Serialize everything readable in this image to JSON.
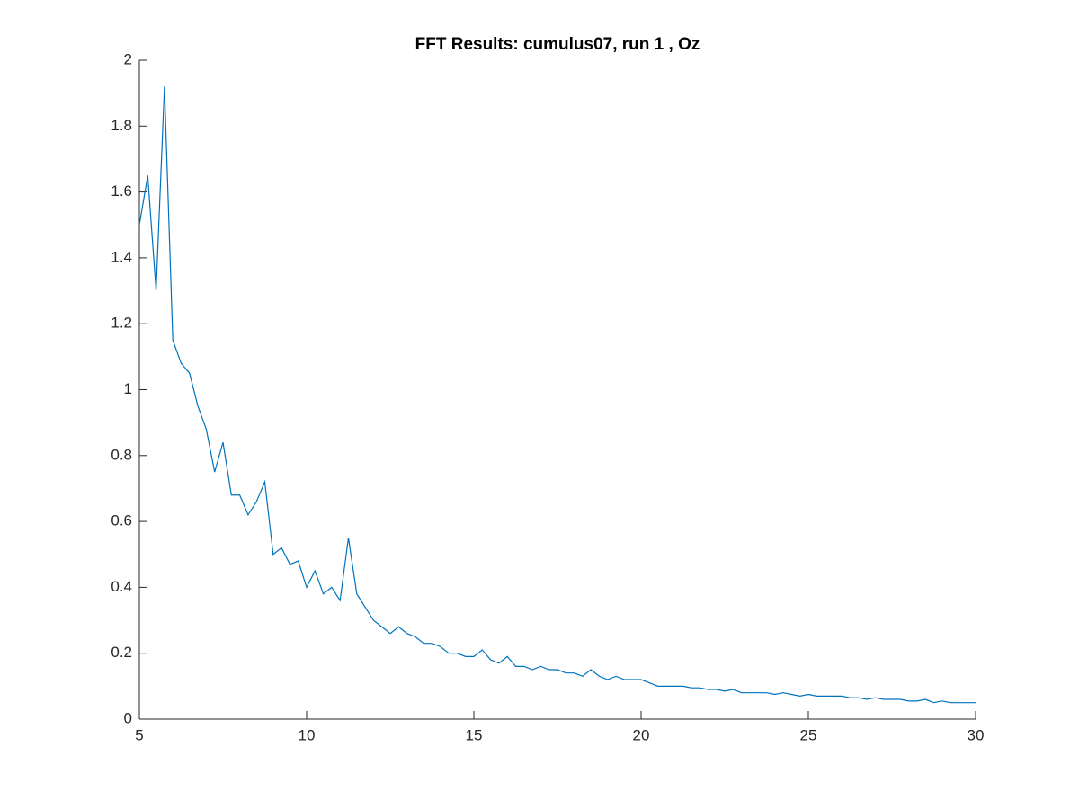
{
  "chart_data": {
    "type": "line",
    "title": "FFT Results: cumulus07, run 1 , Oz",
    "x": [
      5,
      5.25,
      5.5,
      5.75,
      6,
      6.25,
      6.5,
      6.75,
      7,
      7.25,
      7.5,
      7.75,
      8,
      8.25,
      8.5,
      8.75,
      9,
      9.25,
      9.5,
      9.75,
      10,
      10.25,
      10.5,
      10.75,
      11,
      11.25,
      11.5,
      11.75,
      12,
      12.25,
      12.5,
      12.75,
      13,
      13.25,
      13.5,
      13.75,
      14,
      14.25,
      14.5,
      14.75,
      15,
      15.25,
      15.5,
      15.75,
      16,
      16.25,
      16.5,
      16.75,
      17,
      17.25,
      17.5,
      17.75,
      18,
      18.25,
      18.5,
      18.75,
      19,
      19.25,
      19.5,
      19.75,
      20,
      20.25,
      20.5,
      20.75,
      21,
      21.25,
      21.5,
      21.75,
      22,
      22.25,
      22.5,
      22.75,
      23,
      23.25,
      23.5,
      23.75,
      24,
      24.25,
      24.5,
      24.75,
      25,
      25.25,
      25.5,
      25.75,
      26,
      26.25,
      26.5,
      26.75,
      27,
      27.25,
      27.5,
      27.75,
      28,
      28.25,
      28.5,
      28.75,
      29,
      29.25,
      29.5,
      29.75,
      30
    ],
    "series": [
      {
        "color": "#0072bd",
        "values": [
          1.5,
          1.65,
          1.3,
          1.92,
          1.15,
          1.08,
          1.05,
          0.95,
          0.88,
          0.75,
          0.84,
          0.68,
          0.68,
          0.62,
          0.66,
          0.72,
          0.5,
          0.52,
          0.47,
          0.48,
          0.4,
          0.45,
          0.38,
          0.4,
          0.36,
          0.55,
          0.38,
          0.34,
          0.3,
          0.28,
          0.26,
          0.28,
          0.26,
          0.25,
          0.23,
          0.23,
          0.22,
          0.2,
          0.2,
          0.19,
          0.19,
          0.21,
          0.18,
          0.17,
          0.19,
          0.16,
          0.16,
          0.15,
          0.16,
          0.15,
          0.15,
          0.14,
          0.14,
          0.13,
          0.15,
          0.13,
          0.12,
          0.13,
          0.12,
          0.12,
          0.12,
          0.11,
          0.1,
          0.1,
          0.1,
          0.1,
          0.095,
          0.095,
          0.09,
          0.09,
          0.085,
          0.09,
          0.08,
          0.08,
          0.08,
          0.08,
          0.075,
          0.08,
          0.075,
          0.07,
          0.075,
          0.07,
          0.07,
          0.07,
          0.07,
          0.065,
          0.065,
          0.06,
          0.065,
          0.06,
          0.06,
          0.06,
          0.055,
          0.055,
          0.06,
          0.05,
          0.055,
          0.05,
          0.05,
          0.05,
          0.05
        ]
      }
    ],
    "xlim": [
      5,
      30
    ],
    "xticks": [
      5,
      10,
      15,
      20,
      25,
      30
    ],
    "ylim": [
      0,
      2
    ],
    "yticks": [
      0,
      0.2,
      0.4,
      0.6,
      0.8,
      1,
      1.2,
      1.4,
      1.6,
      1.8,
      2
    ]
  }
}
